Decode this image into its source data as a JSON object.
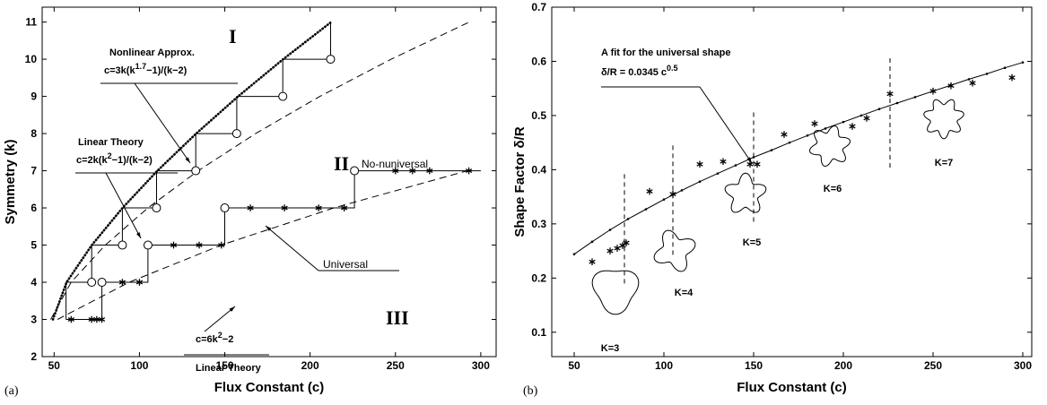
{
  "chart_data": [
    {
      "type": "line",
      "panel_label": "(a)",
      "xlabel": "Flux Constant (c)",
      "ylabel": "Symmetry (k)",
      "xlim": [
        43,
        309
      ],
      "ylim": [
        2,
        11.4
      ],
      "xticks": [
        50,
        100,
        150,
        200,
        250,
        300
      ],
      "yticks": [
        2,
        3,
        4,
        5,
        6,
        7,
        8,
        9,
        10,
        11
      ],
      "series": [
        {
          "color": "#000000",
          "style": "dotted",
          "marker": "none",
          "x": [
            49.3,
            57.3,
            72.1,
            90.1,
            110.5,
            133.2,
            157.8,
            184.2,
            212.3
          ],
          "values": [
            3,
            4,
            5,
            6,
            7,
            8,
            9,
            10,
            11
          ]
        },
        {
          "color": "#000000",
          "style": "dashed",
          "marker": "none",
          "x": [
            48,
            60,
            80,
            105,
            134.4,
            168,
            205.7,
            247.5,
            293.3
          ],
          "values": [
            3,
            4,
            5,
            6,
            7,
            8,
            9,
            10,
            11
          ]
        },
        {
          "color": "#000000",
          "style": "dashed",
          "marker": "none",
          "x": [
            52,
            94,
            148,
            214,
            292
          ],
          "values": [
            3,
            4,
            5,
            6,
            7
          ]
        },
        {
          "color": "#000000",
          "style": "solid",
          "marker": "none",
          "x": [
            57,
            57,
            72,
            72,
            90,
            90,
            110,
            110,
            133,
            133,
            157,
            157,
            184,
            184,
            212,
            212
          ],
          "values": [
            3,
            4,
            4,
            5,
            5,
            6,
            6,
            7,
            7,
            8,
            8,
            9,
            9,
            10,
            10,
            11
          ]
        },
        {
          "color": "#000000",
          "style": "none",
          "marker": "circle",
          "x": [
            72,
            90,
            110,
            133,
            157,
            184,
            212
          ],
          "values": [
            4,
            5,
            6,
            7,
            8,
            9,
            10
          ]
        },
        {
          "color": "#000000",
          "style": "solid",
          "marker": "none",
          "x": [
            57,
            78,
            78,
            105,
            105,
            150,
            150,
            226,
            226,
            300
          ],
          "values": [
            3,
            3,
            4,
            4,
            5,
            5,
            6,
            6,
            7,
            7
          ]
        },
        {
          "color": "#000000",
          "style": "none",
          "marker": "circle",
          "x": [
            78,
            105,
            150,
            226
          ],
          "values": [
            4,
            5,
            6,
            7
          ]
        },
        {
          "color": "#000000",
          "style": "none",
          "marker": "star",
          "x": [
            60,
            72,
            75,
            78,
            90,
            100,
            120,
            135,
            148,
            165,
            185,
            205,
            220,
            250,
            260,
            270,
            293
          ],
          "values": [
            3,
            3,
            3,
            3,
            4,
            4,
            5,
            5,
            5,
            6,
            6,
            6,
            6,
            7,
            7,
            7,
            7
          ]
        }
      ],
      "annotations": [
        "I",
        "II",
        "III",
        "Nonlinear Approx.",
        [
          "c=3k(k",
          "1.7",
          "−1)/(k−2)"
        ],
        "Linear Theory",
        [
          "c=2k(k",
          "2",
          "−1)/(k−2)"
        ],
        "No-nuniversal",
        "Universal",
        [
          "c=6k",
          "2",
          "−2"
        ],
        "Linear Theory"
      ]
    },
    {
      "type": "line",
      "panel_label": "(b)",
      "xlabel": "Flux Constant (c)",
      "ylabel": "Shape Factor δ/R",
      "xlim": [
        37.5,
        305
      ],
      "ylim": [
        0.055,
        0.7
      ],
      "xticks": [
        50,
        100,
        150,
        200,
        250,
        300
      ],
      "yticks": [
        0.1,
        0.2,
        0.3,
        0.4,
        0.5,
        0.6,
        0.7
      ],
      "series": [
        {
          "color": "#000000",
          "style": "solid",
          "marker": "dot",
          "x": [
            50,
            60,
            70,
            80,
            90,
            100,
            110,
            120,
            130,
            140,
            150,
            160,
            170,
            180,
            190,
            200,
            210,
            220,
            230,
            240,
            250,
            260,
            270,
            280,
            290,
            300
          ],
          "values": [
            0.244,
            0.267,
            0.289,
            0.309,
            0.327,
            0.345,
            0.362,
            0.378,
            0.393,
            0.408,
            0.423,
            0.436,
            0.45,
            0.463,
            0.476,
            0.488,
            0.5,
            0.512,
            0.523,
            0.534,
            0.545,
            0.556,
            0.567,
            0.577,
            0.588,
            0.598
          ]
        },
        {
          "color": "#000000",
          "style": "none",
          "marker": "star",
          "x": [
            60,
            70,
            74,
            77,
            79,
            92,
            105,
            120,
            133,
            148,
            152,
            167,
            184,
            205,
            213,
            226,
            250,
            260,
            272,
            294
          ],
          "values": [
            0.23,
            0.25,
            0.255,
            0.26,
            0.265,
            0.36,
            0.355,
            0.41,
            0.415,
            0.41,
            0.41,
            0.465,
            0.485,
            0.48,
            0.495,
            0.54,
            0.545,
            0.555,
            0.56,
            0.57
          ]
        }
      ],
      "dividers": [
        78,
        105,
        150,
        226
      ],
      "shape_labels": [
        "K=3",
        "K=4",
        "K=5",
        "K=6",
        "K=7"
      ],
      "annotations": [
        "A fit for the universal shape",
        [
          "δ/R = 0.0345 c",
          "0.5"
        ]
      ]
    }
  ]
}
